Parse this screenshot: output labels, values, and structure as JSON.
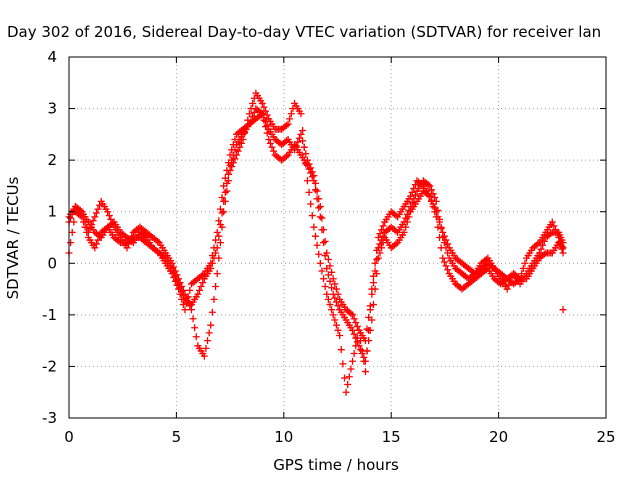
{
  "chart_data": {
    "type": "scatter",
    "title": "Day 302 of 2016, Sidereal Day-to-day VTEC variation (SDTVAR) for receiver lan",
    "xlabel": "GPS time / hours",
    "ylabel": "SDTVAR / TECUs",
    "xlim": [
      0,
      25
    ],
    "ylim": [
      -3,
      4
    ],
    "xticks": [
      0,
      5,
      10,
      15,
      20,
      25
    ],
    "yticks": [
      -3,
      -2,
      -1,
      0,
      1,
      2,
      3,
      4
    ],
    "grid": true,
    "marker": "+",
    "color": "#ff0000",
    "series": [
      {
        "x": [
          0.0,
          0.3,
          0.6,
          0.9,
          1.2,
          1.5,
          1.8,
          2.1,
          2.4,
          2.7,
          3.0,
          3.3,
          3.6,
          3.9,
          4.2,
          4.5,
          4.8,
          5.1,
          5.4,
          5.7,
          6.0,
          6.3,
          6.6,
          6.9,
          7.2,
          7.5,
          7.8,
          8.1,
          8.4,
          8.7,
          9.0,
          9.3,
          9.6,
          9.9,
          10.2,
          10.5,
          10.8,
          11.1,
          11.4,
          11.7,
          12.0,
          12.3,
          12.6,
          12.9,
          13.2,
          13.5,
          13.8,
          14.1,
          14.4,
          14.7,
          15.0,
          15.3,
          15.6,
          15.9,
          16.2,
          16.5,
          16.8,
          17.1,
          17.4,
          17.7,
          18.0,
          18.3,
          18.6,
          18.9,
          19.2,
          19.5,
          19.8,
          20.1,
          20.4,
          20.7,
          21.0,
          21.3,
          21.6,
          21.9,
          22.2,
          22.5,
          22.8,
          23.0
        ],
        "y": [
          0.2,
          1.0,
          0.9,
          0.5,
          0.3,
          0.6,
          0.7,
          0.5,
          0.4,
          0.4,
          0.5,
          0.5,
          0.4,
          0.3,
          0.2,
          0.1,
          -0.1,
          -0.4,
          -0.7,
          -0.8,
          -0.6,
          -0.3,
          -0.1,
          0.3,
          1.2,
          1.9,
          2.3,
          2.5,
          2.7,
          2.8,
          2.9,
          2.4,
          2.1,
          2.0,
          2.1,
          2.3,
          2.1,
          1.9,
          1.6,
          0.9,
          -0.1,
          -0.6,
          -0.9,
          -1.1,
          -1.3,
          -1.6,
          -1.9,
          -1.1,
          0.1,
          0.5,
          0.3,
          0.4,
          0.6,
          1.0,
          1.2,
          1.4,
          1.3,
          0.9,
          0.1,
          -0.2,
          -0.4,
          -0.5,
          -0.4,
          -0.3,
          -0.2,
          -0.1,
          -0.3,
          -0.4,
          -0.3,
          -0.4,
          -0.3,
          -0.3,
          -0.1,
          0.1,
          0.2,
          0.2,
          0.4,
          0.3
        ]
      },
      {
        "x": [
          0.0,
          0.3,
          0.6,
          0.9,
          1.2,
          1.5,
          1.8,
          2.1,
          2.4,
          2.7,
          3.0,
          3.3,
          3.6,
          3.9,
          4.2,
          4.5,
          4.8,
          5.1,
          5.4,
          5.7,
          6.0,
          6.3,
          6.6,
          6.9,
          7.2,
          7.5,
          7.8,
          8.1,
          8.4,
          8.7,
          9.0,
          9.3,
          9.6,
          9.9,
          10.2,
          10.5,
          10.8,
          11.1,
          11.4,
          11.7,
          12.0,
          12.3,
          12.6,
          12.9,
          13.2,
          13.5,
          13.8,
          14.1,
          14.4,
          14.7,
          15.0,
          15.3,
          15.6,
          15.9,
          16.2,
          16.5,
          16.8,
          17.1,
          17.4,
          17.7,
          18.0,
          18.3,
          18.6,
          18.9,
          19.2,
          19.5,
          19.8,
          20.1,
          20.4,
          20.7,
          21.0,
          21.3,
          21.6,
          21.9,
          22.2,
          22.5,
          22.8,
          23.0
        ],
        "y": [
          0.9,
          1.1,
          1.0,
          0.8,
          0.6,
          0.5,
          0.7,
          0.8,
          0.6,
          0.5,
          0.4,
          0.6,
          0.5,
          0.3,
          0.2,
          0.0,
          -0.2,
          -0.5,
          -0.9,
          -0.4,
          -0.3,
          -0.2,
          0.0,
          0.6,
          1.5,
          2.1,
          2.5,
          2.6,
          2.7,
          3.0,
          2.9,
          2.6,
          2.4,
          2.3,
          2.4,
          2.2,
          2.5,
          2.0,
          1.7,
          1.1,
          0.2,
          -0.3,
          -0.7,
          -0.9,
          -1.0,
          -1.3,
          -1.5,
          -0.6,
          0.3,
          0.6,
          0.7,
          0.6,
          0.8,
          1.1,
          1.4,
          1.6,
          1.5,
          1.2,
          0.5,
          0.1,
          -0.1,
          -0.2,
          -0.3,
          -0.2,
          -0.1,
          0.0,
          -0.1,
          -0.2,
          -0.3,
          -0.2,
          -0.4,
          -0.2,
          0.0,
          0.2,
          0.5,
          0.6,
          0.6,
          0.4
        ]
      },
      {
        "x": [
          0.0,
          0.3,
          0.6,
          0.9,
          1.2,
          1.5,
          1.8,
          2.1,
          2.4,
          2.7,
          3.0,
          3.3,
          3.6,
          3.9,
          4.2,
          4.5,
          4.8,
          5.1,
          5.4,
          5.7,
          6.0,
          6.3,
          6.6,
          6.9,
          7.2,
          7.5,
          7.8,
          8.1,
          8.4,
          8.7,
          9.0,
          9.3,
          9.6,
          9.9,
          10.2,
          10.5,
          10.8,
          11.1,
          11.4,
          11.7,
          12.0,
          12.3,
          12.6,
          12.9,
          13.2,
          13.5,
          13.8,
          14.1,
          14.4,
          14.7,
          15.0,
          15.3,
          15.6,
          15.9,
          16.2,
          16.5,
          16.8,
          17.1,
          17.4,
          17.7,
          18.0,
          18.3,
          18.6,
          18.9,
          19.2,
          19.5,
          19.8,
          20.1,
          20.4,
          20.7,
          21.0,
          21.3,
          21.6,
          21.9,
          22.2,
          22.5,
          22.8,
          23.0
        ],
        "y": [
          0.8,
          1.1,
          1.0,
          0.6,
          0.9,
          1.2,
          1.0,
          0.7,
          0.5,
          0.3,
          0.6,
          0.7,
          0.6,
          0.5,
          0.4,
          0.2,
          0.0,
          -0.3,
          -0.6,
          -0.9,
          -1.6,
          -1.8,
          -1.2,
          -0.2,
          1.0,
          1.8,
          2.1,
          2.4,
          2.9,
          3.3,
          3.1,
          2.8,
          2.6,
          2.6,
          2.7,
          3.1,
          2.9,
          1.6,
          0.7,
          0.0,
          -0.6,
          -1.0,
          -1.4,
          -2.5,
          -1.9,
          -1.3,
          -2.1,
          -0.5,
          0.5,
          0.8,
          1.0,
          0.9,
          1.1,
          1.3,
          1.6,
          1.5,
          1.3,
          1.0,
          0.6,
          0.3,
          0.1,
          0.0,
          -0.1,
          -0.2,
          0.0,
          0.1,
          -0.1,
          -0.3,
          -0.5,
          -0.2,
          -0.3,
          0.1,
          0.3,
          0.4,
          0.6,
          0.8,
          0.5,
          0.2
        ]
      },
      {
        "x": [
          23.0
        ],
        "y": [
          -0.9
        ]
      }
    ]
  }
}
